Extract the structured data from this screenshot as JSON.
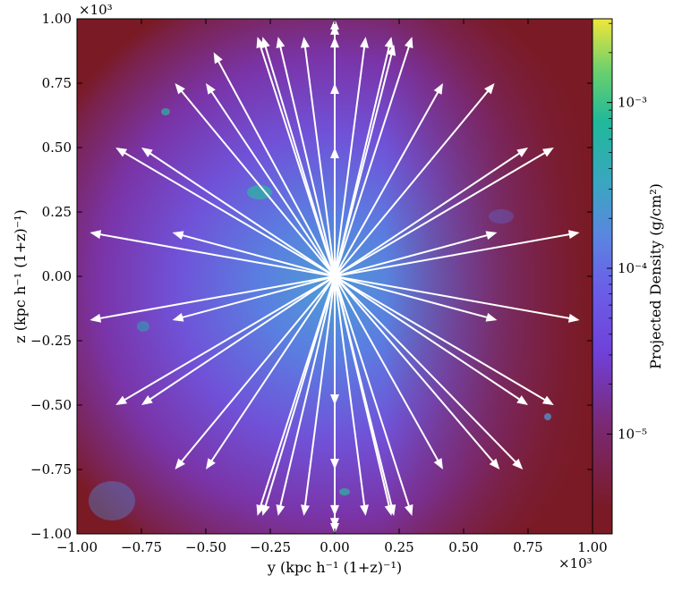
{
  "chart_data": {
    "type": "heatmap",
    "title": "",
    "xlabel": "y  (kpc h⁻¹ (1+z)⁻¹)",
    "ylabel": "z  (kpc h⁻¹ (1+z)⁻¹)",
    "x_multiplier": "×10³",
    "y_multiplier": "×10³",
    "xlim": [
      -1.0,
      1.0
    ],
    "ylim": [
      -1.0,
      1.0
    ],
    "x_ticks": [
      -1.0,
      -0.75,
      -0.5,
      -0.25,
      0.0,
      0.25,
      0.5,
      0.75,
      1.0
    ],
    "y_ticks": [
      -1.0,
      -0.75,
      -0.5,
      -0.25,
      0.0,
      0.25,
      0.5,
      0.75,
      1.0
    ],
    "x_tick_labels": [
      "−1.00",
      "−0.75",
      "−0.50",
      "−0.25",
      "0.00",
      "0.25",
      "0.50",
      "0.75",
      "1.00"
    ],
    "y_tick_labels": [
      "−1.00",
      "−0.75",
      "−0.50",
      "−0.25",
      "0.00",
      "0.25",
      "0.50",
      "0.75",
      "1.00"
    ],
    "colorbar": {
      "label": "Projected Density  (g/cm²)",
      "scale": "log",
      "range": [
        2.5e-06,
        0.0032
      ],
      "ticks": [
        1e-05,
        0.0001,
        0.001
      ],
      "tick_labels": [
        "10⁻⁵",
        "10⁻⁴",
        "10⁻³"
      ],
      "colormap": "viridis-like, low values dark red"
    },
    "vector_field": {
      "description": "radial outflow arrows from origin",
      "origin": [
        0.0,
        0.0
      ],
      "arrow_color": "#ffffff",
      "arrows": [
        [
          0.0,
          1.0
        ],
        [
          0.0,
          0.98
        ],
        [
          0.0,
          0.93
        ],
        [
          0.0,
          0.75
        ],
        [
          0.0,
          0.5
        ],
        [
          0.0,
          -1.0
        ],
        [
          0.0,
          -0.98
        ],
        [
          0.0,
          -0.93
        ],
        [
          0.0,
          -0.75
        ],
        [
          0.0,
          -0.5
        ],
        [
          0.12,
          0.93
        ],
        [
          0.22,
          0.93
        ],
        [
          0.23,
          0.9
        ],
        [
          0.3,
          0.93
        ],
        [
          -0.12,
          0.93
        ],
        [
          -0.22,
          0.93
        ],
        [
          -0.28,
          0.93
        ],
        [
          -0.3,
          0.93
        ],
        [
          0.12,
          -0.93
        ],
        [
          0.22,
          -0.93
        ],
        [
          0.23,
          -0.93
        ],
        [
          0.3,
          -0.93
        ],
        [
          -0.12,
          -0.93
        ],
        [
          -0.22,
          -0.93
        ],
        [
          -0.28,
          -0.93
        ],
        [
          -0.3,
          -0.93
        ],
        [
          0.42,
          0.75
        ],
        [
          0.62,
          0.75
        ],
        [
          -0.5,
          0.75
        ],
        [
          -0.62,
          0.75
        ],
        [
          -0.47,
          0.87
        ],
        [
          0.42,
          -0.75
        ],
        [
          0.64,
          -0.75
        ],
        [
          0.73,
          -0.75
        ],
        [
          -0.5,
          -0.75
        ],
        [
          -0.62,
          -0.75
        ],
        [
          0.75,
          0.5
        ],
        [
          0.85,
          0.5
        ],
        [
          -0.75,
          0.5
        ],
        [
          -0.85,
          0.5
        ],
        [
          0.75,
          -0.5
        ],
        [
          0.85,
          -0.5
        ],
        [
          -0.75,
          -0.5
        ],
        [
          -0.85,
          -0.5
        ],
        [
          0.63,
          0.17
        ],
        [
          0.95,
          0.17
        ],
        [
          -0.63,
          0.17
        ],
        [
          -0.95,
          0.17
        ],
        [
          0.63,
          -0.17
        ],
        [
          0.95,
          -0.17
        ],
        [
          -0.63,
          -0.17
        ],
        [
          -0.95,
          -0.17
        ]
      ]
    }
  }
}
